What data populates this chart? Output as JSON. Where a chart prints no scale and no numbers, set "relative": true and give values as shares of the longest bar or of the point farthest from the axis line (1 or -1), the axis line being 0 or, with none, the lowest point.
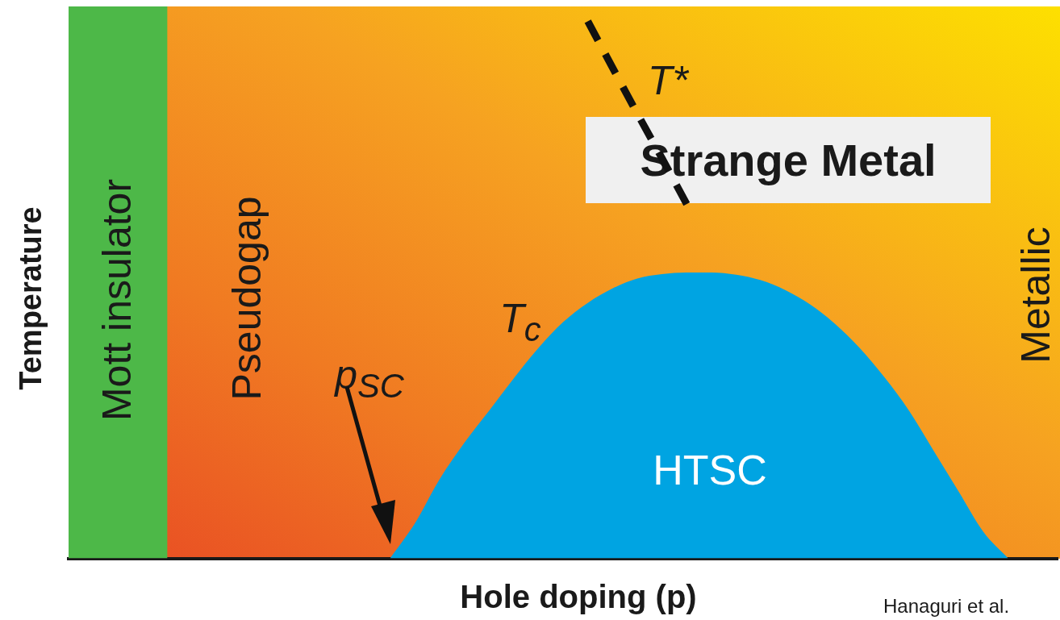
{
  "chart_data": {
    "type": "area",
    "relative": true,
    "xlabel": "Hole doping (p)",
    "ylabel": "Temperature",
    "categories": [
      null,
      null,
      null,
      null,
      null,
      null,
      null,
      null,
      null,
      null,
      null,
      null,
      null,
      null,
      null,
      null,
      null,
      null,
      null,
      null,
      null,
      null,
      null,
      null,
      null,
      null,
      null,
      null,
      null,
      null,
      null,
      null,
      null,
      null,
      null,
      null,
      null,
      null,
      null,
      null,
      null
    ],
    "series": [
      {
        "name": "Mott insulator",
        "type": "area",
        "color": "#4db848",
        "values": [
          1,
          1,
          1,
          1,
          1,
          null,
          null,
          null,
          null,
          null,
          null,
          null,
          null,
          null,
          null,
          null,
          null,
          null,
          null,
          null,
          null,
          null,
          null,
          null,
          null,
          null,
          null,
          null,
          null,
          null,
          null,
          null,
          null,
          null,
          null,
          null,
          null,
          null,
          null,
          null,
          null
        ]
      },
      {
        "name": "T$_{c}$",
        "type": "area",
        "color": "#00a4e2",
        "values": [
          null,
          null,
          null,
          null,
          null,
          null,
          null,
          null,
          null,
          null,
          null,
          null,
          null,
          0,
          0.063,
          0.143,
          0.209,
          0.267,
          0.326,
          0.381,
          0.428,
          0.463,
          0.489,
          0.507,
          0.515,
          0.518,
          0.518,
          0.514,
          0.504,
          0.486,
          0.46,
          0.425,
          0.381,
          0.328,
          0.267,
          0.194,
          0.121,
          0.048,
          0,
          null,
          null
        ]
      },
      {
        "name": "T*",
        "type": "line",
        "color": "#111111",
        "line_style": "dashed",
        "values": [
          null,
          null,
          null,
          null,
          null,
          null,
          null,
          null,
          null,
          null,
          null,
          null,
          null,
          null,
          null,
          null,
          null,
          null,
          null,
          null,
          null,
          0.973,
          0.889,
          0.806,
          0.725,
          0.642,
          null,
          null,
          null,
          null,
          null,
          null,
          null,
          null,
          null,
          null,
          null,
          null,
          null,
          null,
          null
        ]
      }
    ],
    "annotations": [
      "Pseudogap",
      "Strange Metal",
      "Metallic",
      "HTSC",
      "p$_{SC}$",
      "Hanaguri et al."
    ],
    "marker": "none",
    "grid": false,
    "legend": false
  }
}
